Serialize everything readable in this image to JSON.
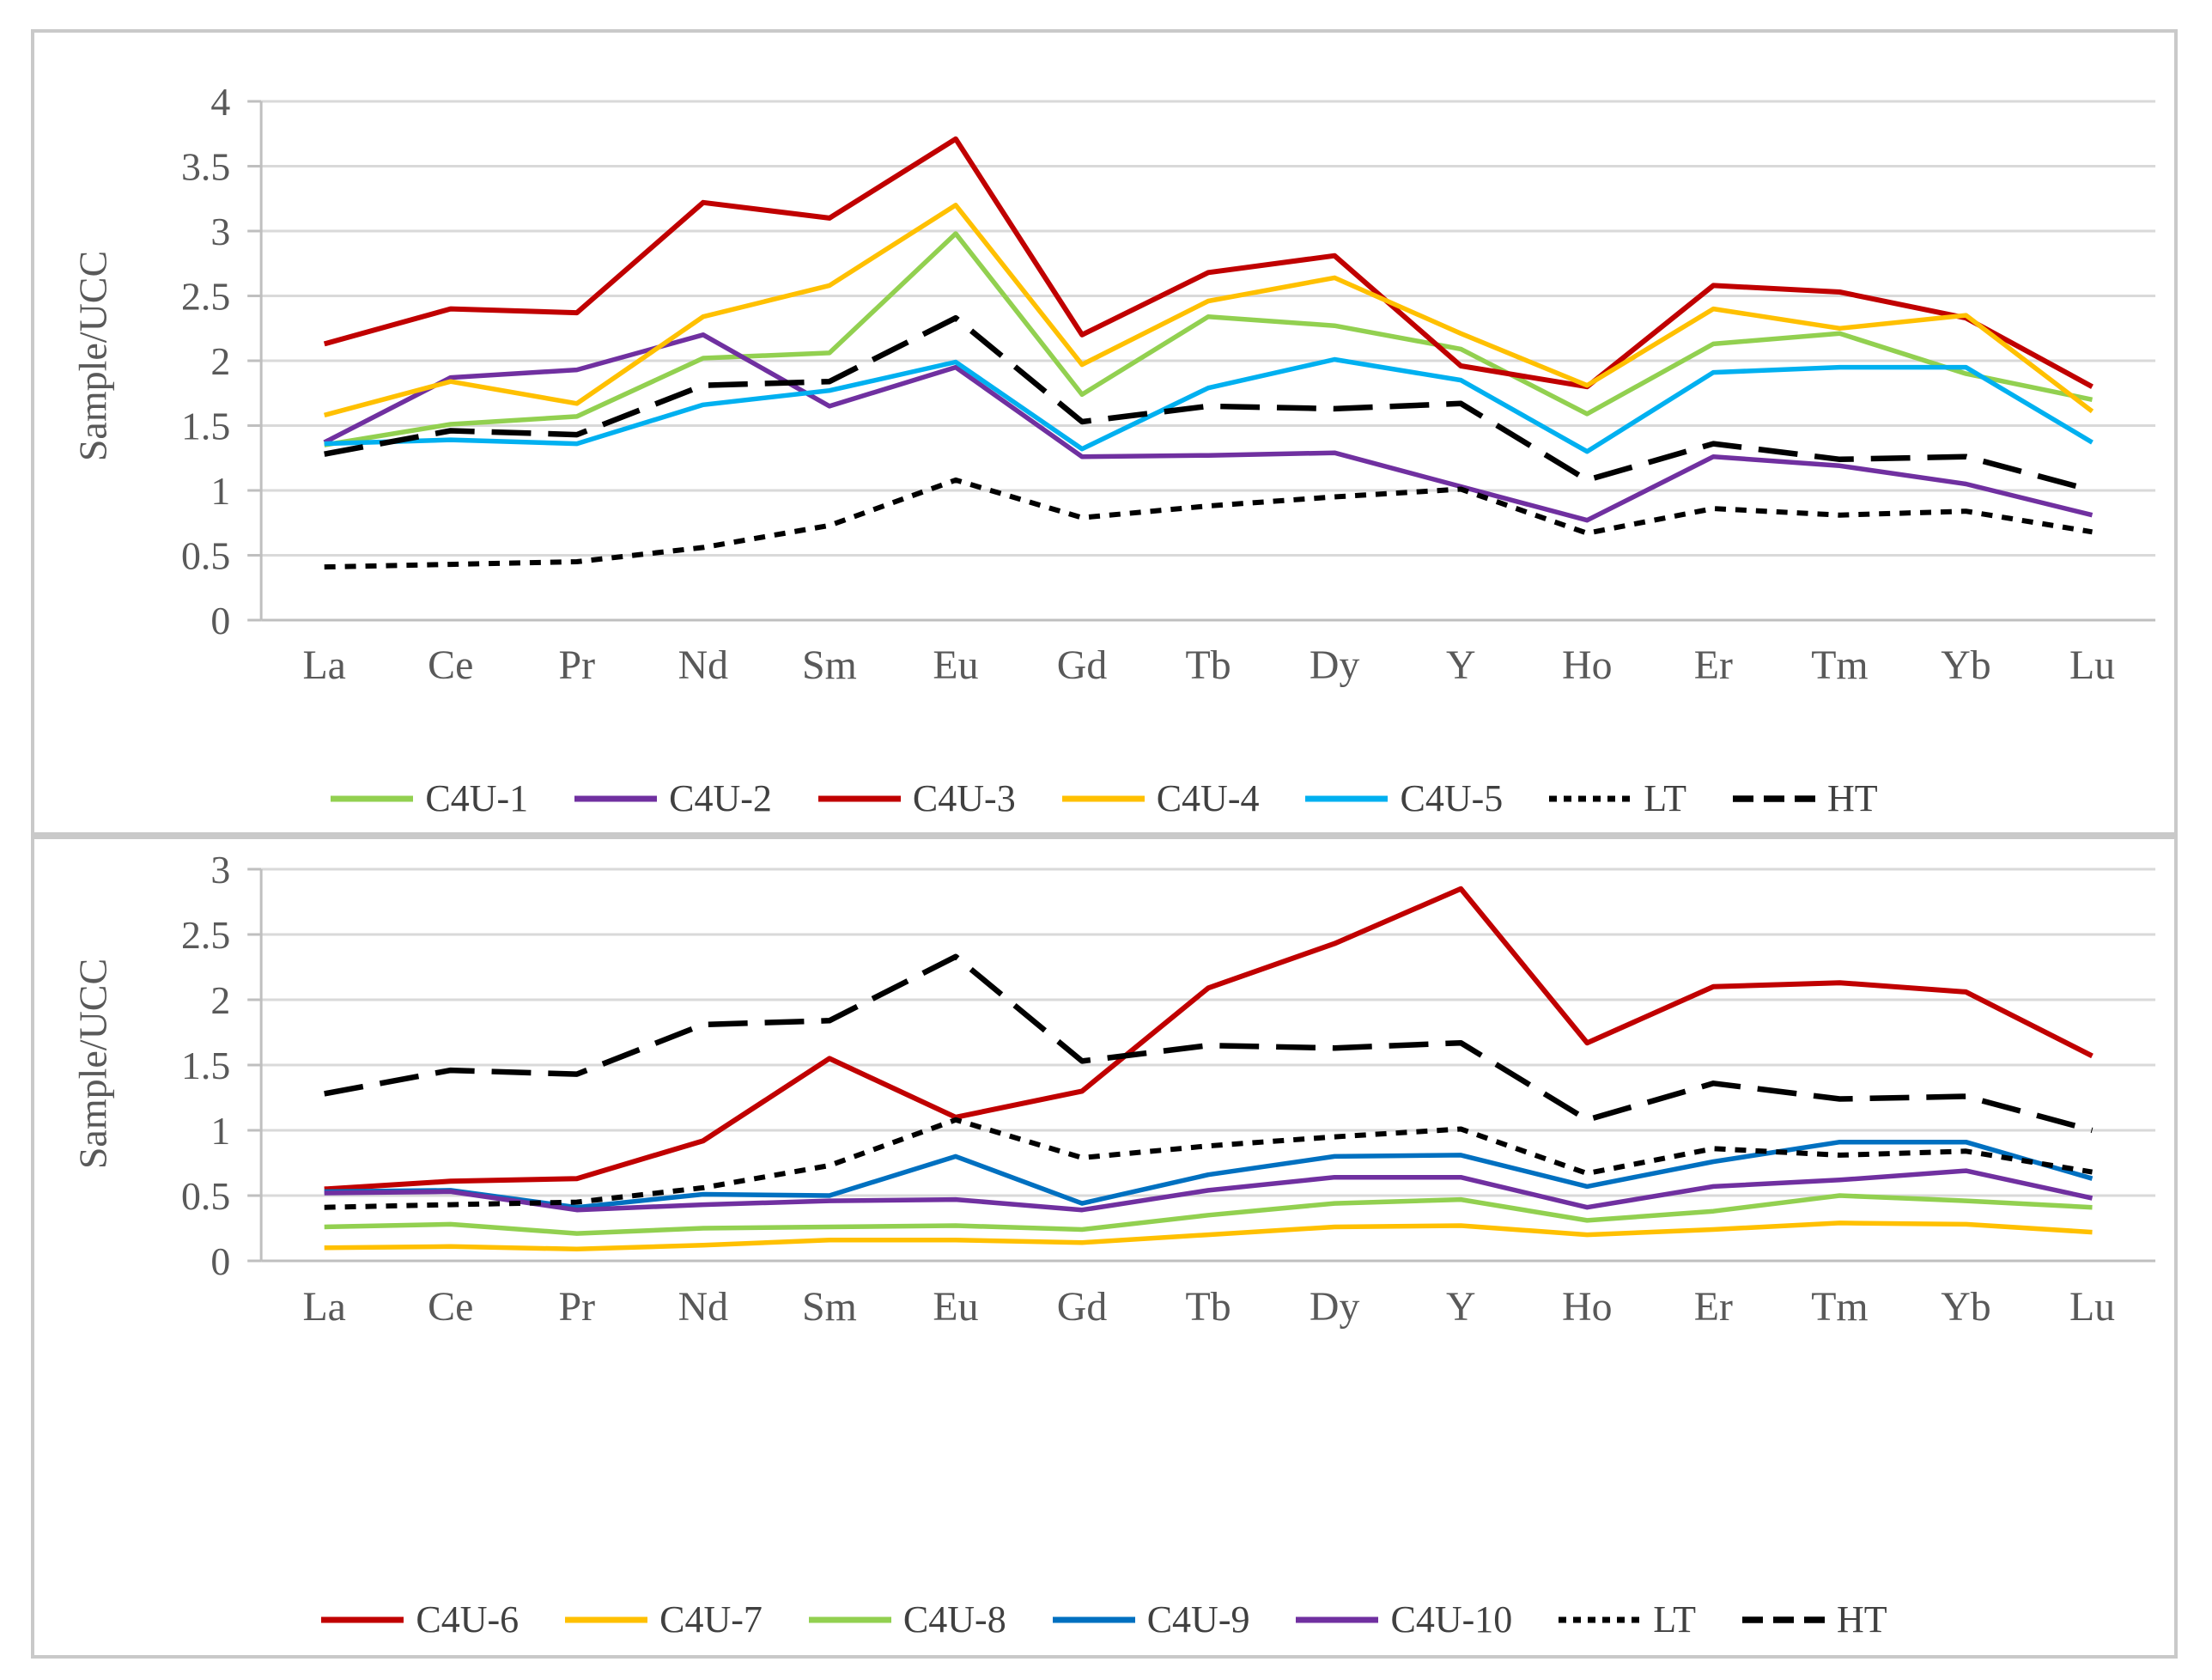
{
  "style": {
    "text_color": "#595959",
    "gridline_color": "#d9d9d9",
    "axis_color": "#bfbfbf",
    "panel_border_color": "#c9c9c9",
    "background": "#ffffff",
    "series_colors": {
      "green": "#92D050",
      "purple": "#7030A0",
      "red": "#C00000",
      "gold": "#FFC000",
      "cyan": "#00B0F0",
      "blue": "#0070C0",
      "black": "#000000"
    }
  },
  "chart_data": [
    {
      "type": "line",
      "title": "",
      "xlabel": "",
      "ylabel": "Sample/UCC",
      "ylim": [
        0,
        4
      ],
      "ytick_step": 0.5,
      "grid": true,
      "legend_position": "bottom",
      "categories": [
        "La",
        "Ce",
        "Pr",
        "Nd",
        "Sm",
        "Eu",
        "Gd",
        "Tb",
        "Dy",
        "Y",
        "Ho",
        "Er",
        "Tm",
        "Yb",
        "Lu"
      ],
      "series": [
        {
          "name": "C4U-1",
          "color": "#92D050",
          "dash": "",
          "width": 5.5,
          "values": [
            1.35,
            1.51,
            1.57,
            2.02,
            2.06,
            2.98,
            1.74,
            2.34,
            2.27,
            2.09,
            1.59,
            2.13,
            2.21,
            1.9,
            1.7
          ]
        },
        {
          "name": "C4U-2",
          "color": "#7030A0",
          "dash": "",
          "width": 5.5,
          "values": [
            1.37,
            1.87,
            1.93,
            2.2,
            1.65,
            1.95,
            1.26,
            1.27,
            1.29,
            1.03,
            0.77,
            1.26,
            1.19,
            1.05,
            0.81
          ]
        },
        {
          "name": "C4U-3",
          "color": "#C00000",
          "dash": "",
          "width": 6,
          "values": [
            2.13,
            2.4,
            2.37,
            3.22,
            3.1,
            3.71,
            2.2,
            2.68,
            2.81,
            1.96,
            1.8,
            2.58,
            2.53,
            2.33,
            1.8
          ]
        },
        {
          "name": "C4U-4",
          "color": "#FFC000",
          "dash": "",
          "width": 5.5,
          "values": [
            1.58,
            1.84,
            1.67,
            2.34,
            2.58,
            3.2,
            1.97,
            2.46,
            2.64,
            2.21,
            1.81,
            2.4,
            2.25,
            2.35,
            1.61
          ]
        },
        {
          "name": "C4U-5",
          "color": "#00B0F0",
          "dash": "",
          "width": 5.5,
          "values": [
            1.36,
            1.39,
            1.36,
            1.66,
            1.77,
            1.99,
            1.32,
            1.79,
            2.01,
            1.85,
            1.3,
            1.91,
            1.95,
            1.95,
            1.37
          ]
        },
        {
          "name": "LT",
          "color": "#000000",
          "dash": "13 11",
          "width": 6,
          "values": [
            0.41,
            0.43,
            0.45,
            0.56,
            0.73,
            1.08,
            0.79,
            0.88,
            0.95,
            1.01,
            0.67,
            0.86,
            0.81,
            0.84,
            0.68
          ]
        },
        {
          "name": "HT",
          "color": "#000000",
          "dash": "46 20",
          "width": 6.5,
          "values": [
            1.28,
            1.46,
            1.43,
            1.81,
            1.84,
            2.33,
            1.53,
            1.65,
            1.63,
            1.67,
            1.08,
            1.36,
            1.24,
            1.26,
            1.0
          ]
        }
      ]
    },
    {
      "type": "line",
      "title": "",
      "xlabel": "",
      "ylabel": "Sample/UCC",
      "ylim": [
        0,
        3
      ],
      "ytick_step": 0.5,
      "grid": true,
      "legend_position": "bottom",
      "categories": [
        "La",
        "Ce",
        "Pr",
        "Nd",
        "Sm",
        "Eu",
        "Gd",
        "Tb",
        "Dy",
        "Y",
        "Ho",
        "Er",
        "Tm",
        "Yb",
        "Lu"
      ],
      "series": [
        {
          "name": "C4U-6",
          "color": "#C00000",
          "dash": "",
          "width": 6,
          "values": [
            0.55,
            0.61,
            0.63,
            0.92,
            1.55,
            1.1,
            1.3,
            2.09,
            2.43,
            2.85,
            1.67,
            2.1,
            2.13,
            2.06,
            1.57
          ]
        },
        {
          "name": "C4U-7",
          "color": "#FFC000",
          "dash": "",
          "width": 5.5,
          "values": [
            0.1,
            0.11,
            0.09,
            0.12,
            0.16,
            0.16,
            0.14,
            0.2,
            0.26,
            0.27,
            0.2,
            0.24,
            0.29,
            0.28,
            0.22
          ]
        },
        {
          "name": "C4U-8",
          "color": "#92D050",
          "dash": "",
          "width": 5.5,
          "values": [
            0.26,
            0.28,
            0.21,
            0.25,
            0.26,
            0.27,
            0.24,
            0.35,
            0.44,
            0.47,
            0.31,
            0.38,
            0.5,
            0.46,
            0.41
          ]
        },
        {
          "name": "C4U-9",
          "color": "#0070C0",
          "dash": "",
          "width": 5.5,
          "values": [
            0.53,
            0.54,
            0.41,
            0.51,
            0.5,
            0.8,
            0.44,
            0.66,
            0.8,
            0.81,
            0.57,
            0.76,
            0.91,
            0.91,
            0.63
          ]
        },
        {
          "name": "C4U-10",
          "color": "#7030A0",
          "dash": "",
          "width": 5.5,
          "values": [
            0.52,
            0.53,
            0.39,
            0.43,
            0.46,
            0.47,
            0.39,
            0.54,
            0.64,
            0.64,
            0.41,
            0.57,
            0.62,
            0.69,
            0.48
          ]
        },
        {
          "name": "LT",
          "color": "#000000",
          "dash": "13 11",
          "width": 6,
          "values": [
            0.41,
            0.43,
            0.45,
            0.56,
            0.73,
            1.08,
            0.79,
            0.88,
            0.95,
            1.01,
            0.67,
            0.86,
            0.81,
            0.84,
            0.68
          ]
        },
        {
          "name": "HT",
          "color": "#000000",
          "dash": "46 20",
          "width": 6.5,
          "values": [
            1.28,
            1.46,
            1.43,
            1.81,
            1.84,
            2.33,
            1.53,
            1.65,
            1.63,
            1.67,
            1.08,
            1.36,
            1.24,
            1.26,
            1.0
          ]
        }
      ]
    }
  ]
}
